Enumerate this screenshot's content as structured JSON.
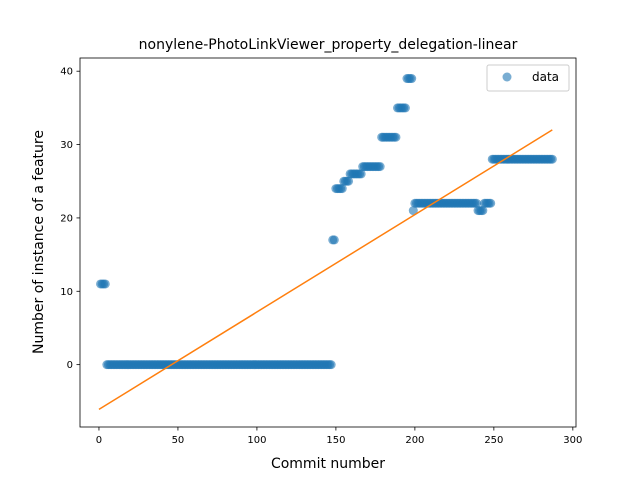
{
  "chart_data": {
    "type": "scatter",
    "title": "nonylene-PhotoLinkViewer_property_delegation-linear",
    "xlabel": "Commit number",
    "ylabel": "Number of instance of a feature",
    "xlim": [
      -12,
      302
    ],
    "ylim": [
      -8.5,
      41.8
    ],
    "xticks": [
      0,
      50,
      100,
      150,
      200,
      250,
      300
    ],
    "yticks": [
      0,
      10,
      20,
      30,
      40
    ],
    "legend_position": "upper-right",
    "colors": {
      "data": "#1f77b4",
      "fit": "#ff7f0e"
    },
    "series": [
      {
        "name": "data",
        "kind": "scatter",
        "segments": [
          {
            "x_start": 1,
            "x_end": 4,
            "y": 11
          },
          {
            "x_start": 5,
            "x_end": 147,
            "y": 0
          },
          {
            "x_start": 148,
            "x_end": 149,
            "y": 17
          },
          {
            "x_start": 150,
            "x_end": 154,
            "y": 24
          },
          {
            "x_start": 155,
            "x_end": 158,
            "y": 25
          },
          {
            "x_start": 159,
            "x_end": 166,
            "y": 26
          },
          {
            "x_start": 167,
            "x_end": 178,
            "y": 27
          },
          {
            "x_start": 179,
            "x_end": 188,
            "y": 31
          },
          {
            "x_start": 189,
            "x_end": 194,
            "y": 35
          },
          {
            "x_start": 195,
            "x_end": 198,
            "y": 39
          },
          {
            "x_start": 199,
            "x_end": 199,
            "y": 21
          },
          {
            "x_start": 200,
            "x_end": 239,
            "y": 22
          },
          {
            "x_start": 240,
            "x_end": 243,
            "y": 21
          },
          {
            "x_start": 244,
            "x_end": 248,
            "y": 22
          },
          {
            "x_start": 249,
            "x_end": 287,
            "y": 28
          }
        ]
      },
      {
        "name": "",
        "kind": "line",
        "x": [
          0,
          287
        ],
        "y": [
          -6.1,
          32.0
        ]
      }
    ]
  }
}
